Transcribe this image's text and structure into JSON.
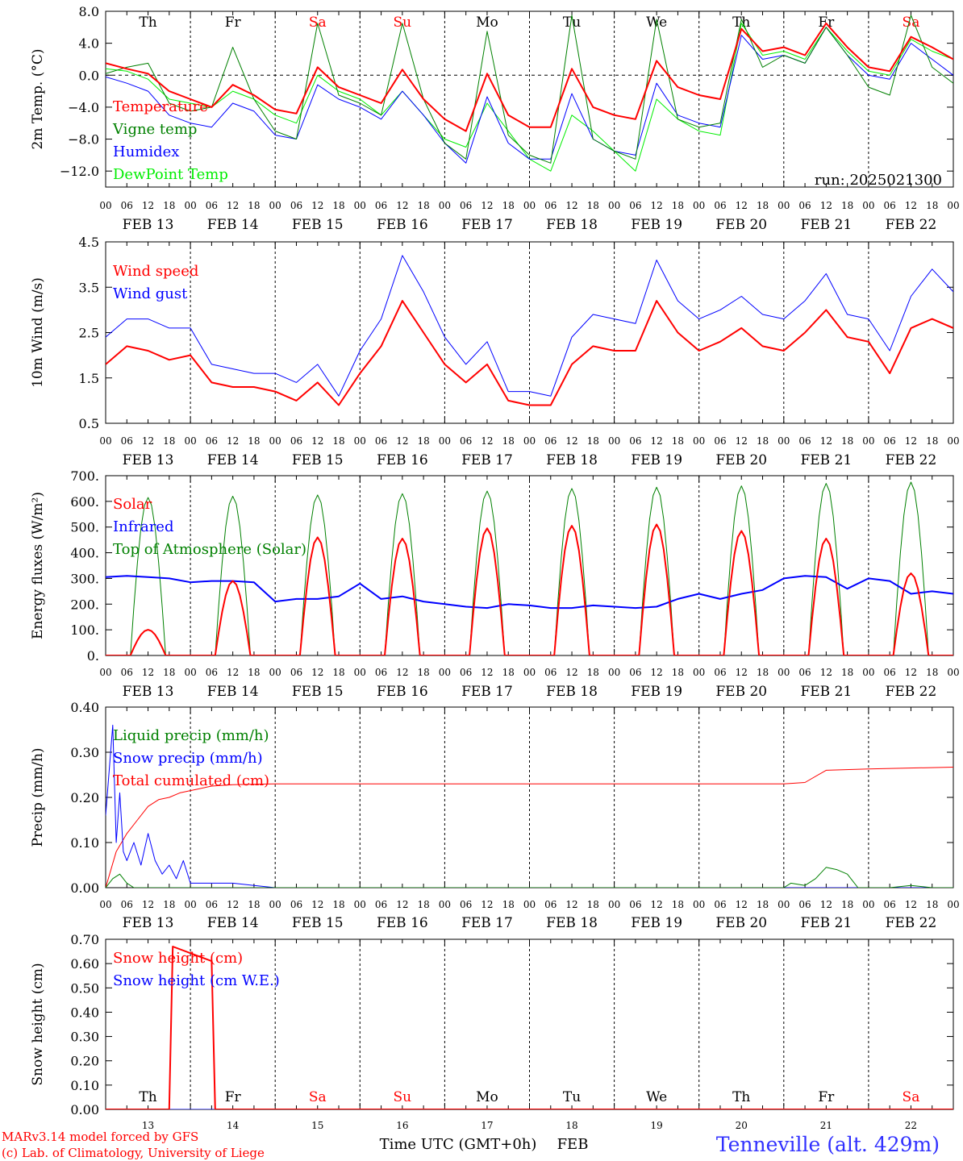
{
  "run_label": "run: 2025021300",
  "station_label": "Tenneville (alt. 429m)",
  "credits": [
    "MARv3.14 model forced by GFS",
    "(c) Lab. of Climatology, University of Liege"
  ],
  "x_axis_label": "Time UTC (GMT+0h)",
  "month_label": "FEB",
  "hour_ticks": [
    "00",
    "06",
    "12",
    "18"
  ],
  "days": [
    {
      "abbr": "Th",
      "date": "FEB 13",
      "num": "13",
      "color": "#000000"
    },
    {
      "abbr": "Fr",
      "date": "FEB 14",
      "num": "14",
      "color": "#000000"
    },
    {
      "abbr": "Sa",
      "date": "FEB 15",
      "num": "15",
      "color": "#ff0000"
    },
    {
      "abbr": "Su",
      "date": "FEB 16",
      "num": "16",
      "color": "#ff0000"
    },
    {
      "abbr": "Mo",
      "date": "FEB 17",
      "num": "17",
      "color": "#000000"
    },
    {
      "abbr": "Tu",
      "date": "FEB 18",
      "num": "18",
      "color": "#000000"
    },
    {
      "abbr": "We",
      "date": "FEB 19",
      "num": "19",
      "color": "#000000"
    },
    {
      "abbr": "Th",
      "date": "FEB 20",
      "num": "20",
      "color": "#000000"
    },
    {
      "abbr": "Fr",
      "date": "FEB 21",
      "num": "21",
      "color": "#000000"
    },
    {
      "abbr": "Sa",
      "date": "FEB 22",
      "num": "22",
      "color": "#ff0000"
    }
  ],
  "chart_data": [
    {
      "type": "line",
      "ylabel": "2m Temp. (°C)",
      "ylim": [
        -14,
        8
      ],
      "yticks": [
        8,
        4,
        0,
        -4,
        -8,
        -12
      ],
      "ytick_labels": [
        "8.0",
        "4.0",
        "0.0",
        "−4.0",
        "−8.0",
        "−12.0"
      ],
      "zero_line": true,
      "x": [
        0,
        6,
        12,
        18,
        24,
        30,
        36,
        42,
        48,
        54,
        60,
        66,
        72,
        78,
        84,
        90,
        96,
        102,
        108,
        114,
        120,
        126,
        132,
        138,
        144,
        150,
        156,
        162,
        168,
        174,
        180,
        186,
        192,
        198,
        204,
        210,
        216,
        222,
        228,
        234,
        240
      ],
      "series": [
        {
          "name": "Temperature",
          "color": "#ff0000",
          "width": 2,
          "values": [
            1.5,
            0.8,
            0.2,
            -2.0,
            -3.0,
            -4.0,
            -1.2,
            -2.5,
            -4.3,
            -4.8,
            1.0,
            -1.5,
            -2.5,
            -3.5,
            0.7,
            -3.0,
            -5.5,
            -7.0,
            0.2,
            -5.0,
            -6.5,
            -6.5,
            0.8,
            -4.0,
            -5.0,
            -5.5,
            1.8,
            -1.5,
            -2.5,
            -3.0,
            5.8,
            3.0,
            3.5,
            2.5,
            6.5,
            3.5,
            1.0,
            0.5,
            4.8,
            3.5,
            2.0
          ]
        },
        {
          "name": "Vigne temp",
          "color": "#008000",
          "width": 1,
          "values": [
            0.2,
            1.0,
            1.5,
            -3.5,
            -4.5,
            -4.0,
            3.5,
            -3.0,
            -7.0,
            -8.0,
            6.5,
            -2.5,
            -3.5,
            -5.0,
            6.5,
            -3.0,
            -8.5,
            -10.5,
            5.5,
            -7.5,
            -10.0,
            -11.0,
            7.5,
            -8.0,
            -9.5,
            -10.5,
            7.0,
            -5.5,
            -6.5,
            -6.0,
            7.0,
            1.0,
            2.5,
            1.5,
            6.0,
            2.5,
            -1.5,
            -2.5,
            7.5,
            1.0,
            -1.0
          ]
        },
        {
          "name": "Humidex",
          "color": "#0000ff",
          "width": 1,
          "values": [
            -0.2,
            -1.0,
            -2.0,
            -5.0,
            -6.0,
            -6.5,
            -3.5,
            -4.5,
            -7.5,
            -8.0,
            -1.2,
            -3.0,
            -4.0,
            -5.5,
            -2.0,
            -5.0,
            -8.5,
            -11.0,
            -2.7,
            -8.5,
            -10.5,
            -10.5,
            -2.3,
            -8.0,
            -9.5,
            -10.0,
            -1.0,
            -5.0,
            -6.0,
            -6.5,
            5.0,
            2.0,
            2.5,
            1.5,
            6.0,
            2.5,
            0.0,
            -0.5,
            4.0,
            2.0,
            0.0
          ]
        },
        {
          "name": "DewPoint Temp",
          "color": "#00ee00",
          "width": 1,
          "values": [
            0.8,
            0.5,
            -0.5,
            -3.0,
            -3.5,
            -4.0,
            -2.0,
            -3.0,
            -5.0,
            -6.0,
            0.0,
            -2.0,
            -3.0,
            -5.0,
            -2.0,
            -5.0,
            -8.0,
            -9.0,
            -3.5,
            -7.0,
            -10.5,
            -12.0,
            -5.0,
            -7.0,
            -9.5,
            -12.0,
            -3.0,
            -5.5,
            -7.0,
            -7.5,
            6.5,
            2.5,
            3.0,
            2.0,
            6.0,
            3.0,
            0.5,
            0.0,
            4.5,
            3.0,
            2.0
          ]
        }
      ]
    },
    {
      "type": "line",
      "ylabel": "10m Wind (m/s)",
      "ylim": [
        0.5,
        4.5
      ],
      "yticks": [
        4.5,
        3.5,
        2.5,
        1.5,
        0.5
      ],
      "ytick_labels": [
        "4.5",
        "3.5",
        "2.5",
        "1.5",
        "0.5"
      ],
      "x": [
        0,
        6,
        12,
        18,
        24,
        30,
        36,
        42,
        48,
        54,
        60,
        66,
        72,
        78,
        84,
        90,
        96,
        102,
        108,
        114,
        120,
        126,
        132,
        138,
        144,
        150,
        156,
        162,
        168,
        174,
        180,
        186,
        192,
        198,
        204,
        210,
        216,
        222,
        228,
        234,
        240
      ],
      "series": [
        {
          "name": "Wind speed",
          "color": "#ff0000",
          "width": 2,
          "values": [
            1.8,
            2.2,
            2.1,
            1.9,
            2.0,
            1.4,
            1.3,
            1.3,
            1.2,
            1.0,
            1.4,
            0.9,
            1.6,
            2.2,
            3.2,
            2.5,
            1.8,
            1.4,
            1.8,
            1.0,
            0.9,
            0.9,
            1.8,
            2.2,
            2.1,
            2.1,
            3.2,
            2.5,
            2.1,
            2.3,
            2.6,
            2.2,
            2.1,
            2.5,
            3.0,
            2.4,
            2.3,
            1.6,
            2.6,
            2.8,
            2.6
          ]
        },
        {
          "name": "Wind gust",
          "color": "#0000ff",
          "width": 1,
          "values": [
            2.4,
            2.8,
            2.8,
            2.6,
            2.6,
            1.8,
            1.7,
            1.6,
            1.6,
            1.4,
            1.8,
            1.1,
            2.1,
            2.8,
            4.2,
            3.4,
            2.4,
            1.8,
            2.3,
            1.2,
            1.2,
            1.1,
            2.4,
            2.9,
            2.8,
            2.7,
            4.1,
            3.2,
            2.8,
            3.0,
            3.3,
            2.9,
            2.8,
            3.2,
            3.8,
            2.9,
            2.8,
            2.1,
            3.3,
            3.9,
            3.4
          ]
        }
      ]
    },
    {
      "type": "line",
      "ylabel": "Energy fluxes (W/m²)",
      "ylim": [
        0,
        700
      ],
      "yticks": [
        700,
        600,
        500,
        400,
        300,
        200,
        100,
        0
      ],
      "ytick_labels": [
        "700.",
        "600.",
        "500.",
        "400.",
        "300.",
        "200.",
        "100.",
        "0."
      ],
      "daily_peaks": {
        "Top of Atmosphere (Solar)": [
          615,
          620,
          625,
          630,
          640,
          650,
          655,
          660,
          670,
          675
        ],
        "Solar": [
          100,
          290,
          460,
          455,
          495,
          505,
          510,
          485,
          455,
          320
        ]
      },
      "daylight_hours": [
        7,
        17
      ],
      "x": [
        0,
        6,
        12,
        18,
        24,
        30,
        36,
        42,
        48,
        54,
        60,
        66,
        72,
        78,
        84,
        90,
        96,
        102,
        108,
        114,
        120,
        126,
        132,
        138,
        144,
        150,
        156,
        162,
        168,
        174,
        180,
        186,
        192,
        198,
        204,
        210,
        216,
        222,
        228,
        234,
        240
      ],
      "series": [
        {
          "name": "Solar",
          "color": "#ff0000",
          "width": 2
        },
        {
          "name": "Infrared",
          "color": "#0000ff",
          "width": 2,
          "values": [
            305,
            310,
            305,
            300,
            285,
            290,
            290,
            285,
            210,
            220,
            220,
            230,
            280,
            220,
            230,
            210,
            200,
            190,
            185,
            200,
            195,
            185,
            185,
            195,
            190,
            185,
            190,
            220,
            240,
            220,
            240,
            255,
            300,
            310,
            305,
            260,
            300,
            290,
            240,
            250,
            240
          ]
        },
        {
          "name": "Top of Atmosphere (Solar)",
          "color": "#008000",
          "width": 1
        }
      ]
    },
    {
      "type": "line",
      "ylabel": "Precip (mm/h)",
      "ylim": [
        0,
        0.4
      ],
      "yticks": [
        0.4,
        0.3,
        0.2,
        0.1,
        0.0
      ],
      "ytick_labels": [
        "0.40",
        "0.30",
        "0.20",
        "0.10",
        "0.00"
      ],
      "series": [
        {
          "name": "Liquid precip (mm/h)",
          "color": "#008000",
          "width": 1,
          "x": [
            0,
            2,
            4,
            6,
            8,
            10,
            12,
            24,
            48,
            96,
            144,
            192,
            194,
            198,
            201,
            204,
            207,
            210,
            213,
            216,
            222,
            228,
            234,
            240
          ],
          "values": [
            0.0,
            0.02,
            0.03,
            0.01,
            0.0,
            0.0,
            0.0,
            0.0,
            0.0,
            0.0,
            0.0,
            0.0,
            0.01,
            0.005,
            0.02,
            0.045,
            0.04,
            0.03,
            0.0,
            0.0,
            0.0,
            0.005,
            0.0,
            0.0
          ]
        },
        {
          "name": "Snow precip (mm/h)",
          "color": "#0000ff",
          "width": 1,
          "x": [
            0,
            1,
            2,
            3,
            4,
            5,
            6,
            8,
            10,
            12,
            14,
            16,
            18,
            20,
            22,
            24,
            30,
            36,
            42,
            48,
            240
          ],
          "values": [
            0.16,
            0.26,
            0.36,
            0.1,
            0.21,
            0.08,
            0.06,
            0.1,
            0.05,
            0.12,
            0.06,
            0.03,
            0.05,
            0.02,
            0.06,
            0.01,
            0.01,
            0.01,
            0.005,
            0.0,
            0.0
          ]
        },
        {
          "name": "Total cumulated (cm)",
          "color": "#ff0000",
          "width": 1,
          "x": [
            0,
            3,
            6,
            9,
            12,
            15,
            18,
            21,
            24,
            30,
            36,
            48,
            96,
            144,
            192,
            198,
            204,
            216,
            240
          ],
          "values": [
            0.0,
            0.08,
            0.12,
            0.15,
            0.18,
            0.195,
            0.2,
            0.21,
            0.215,
            0.225,
            0.228,
            0.23,
            0.23,
            0.23,
            0.23,
            0.233,
            0.26,
            0.263,
            0.267
          ]
        }
      ]
    },
    {
      "type": "line",
      "ylabel": "Snow height (cm)",
      "ylim": [
        0,
        0.7
      ],
      "yticks": [
        0.7,
        0.6,
        0.5,
        0.4,
        0.3,
        0.2,
        0.1,
        0.0
      ],
      "ytick_labels": [
        "0.70",
        "0.60",
        "0.50",
        "0.40",
        "0.30",
        "0.20",
        "0.10",
        "0.00"
      ],
      "series": [
        {
          "name": "Snow height (cm)",
          "color": "#ff0000",
          "width": 2,
          "x": [
            0,
            18,
            19,
            30,
            31,
            240
          ],
          "values": [
            0.0,
            0.0,
            0.67,
            0.61,
            0.0,
            0.0
          ]
        },
        {
          "name": "Snow height (cm W.E.)",
          "color": "#0000ff",
          "width": 1,
          "x": [
            0,
            240
          ],
          "values": [
            0.0,
            0.0
          ]
        }
      ]
    }
  ]
}
